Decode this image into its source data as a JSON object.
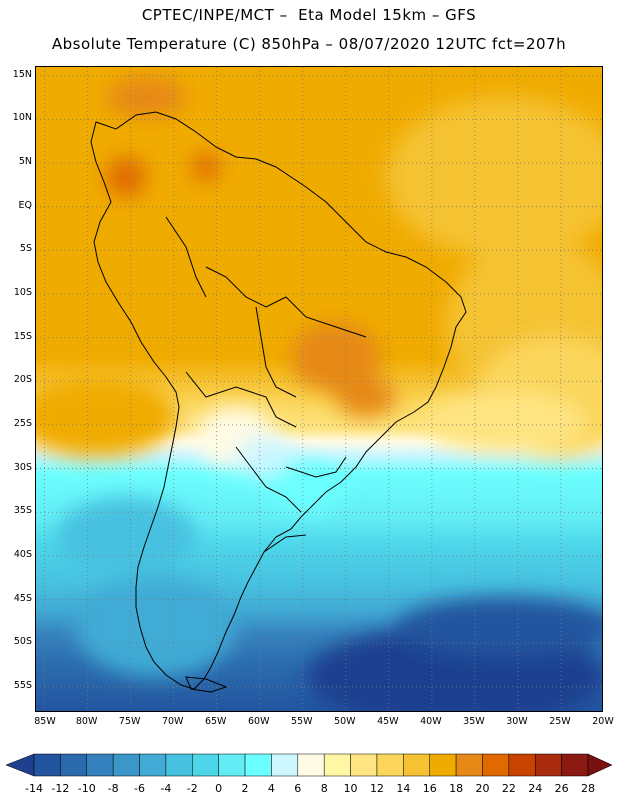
{
  "header": {
    "line1": "CPTEC/INPE/MCT –  Eta Model 15km – GFS",
    "line2": "Absolute Temperature (C) 850hPa – 08/07/2020 12UTC fct=207h"
  },
  "map": {
    "region": "South America",
    "variable": "Absolute Temperature (C) at 850hPa",
    "lat_range": [
      -58,
      16
    ],
    "lon_range": [
      -86,
      -20
    ],
    "lat_labels": [
      {
        "text": "15N",
        "lat": 15
      },
      {
        "text": "10N",
        "lat": 10
      },
      {
        "text": "5N",
        "lat": 5
      },
      {
        "text": "EQ",
        "lat": 0
      },
      {
        "text": "5S",
        "lat": -5
      },
      {
        "text": "10S",
        "lat": -10
      },
      {
        "text": "15S",
        "lat": -15
      },
      {
        "text": "20S",
        "lat": -20
      },
      {
        "text": "25S",
        "lat": -25
      },
      {
        "text": "30S",
        "lat": -30
      },
      {
        "text": "35S",
        "lat": -35
      },
      {
        "text": "40S",
        "lat": -40
      },
      {
        "text": "45S",
        "lat": -45
      },
      {
        "text": "50S",
        "lat": -50
      },
      {
        "text": "55S",
        "lat": -55
      }
    ],
    "lon_labels": [
      {
        "text": "85W",
        "lon": -85
      },
      {
        "text": "80W",
        "lon": -80
      },
      {
        "text": "75W",
        "lon": -75
      },
      {
        "text": "70W",
        "lon": -70
      },
      {
        "text": "65W",
        "lon": -65
      },
      {
        "text": "60W",
        "lon": -60
      },
      {
        "text": "55W",
        "lon": -55
      },
      {
        "text": "50W",
        "lon": -50
      },
      {
        "text": "45W",
        "lon": -45
      },
      {
        "text": "40W",
        "lon": -40
      },
      {
        "text": "35W",
        "lon": -35
      },
      {
        "text": "30W",
        "lon": -30
      },
      {
        "text": "25W",
        "lon": -25
      },
      {
        "text": "20W",
        "lon": -20
      }
    ]
  },
  "colorbar": {
    "ticks": [
      "-14",
      "-12",
      "-10",
      "-8",
      "-6",
      "-4",
      "-2",
      "0",
      "2",
      "4",
      "6",
      "8",
      "10",
      "12",
      "14",
      "16",
      "18",
      "20",
      "22",
      "24",
      "26",
      "28"
    ],
    "colors": [
      "#1f3f8f",
      "#23549f",
      "#2a6aad",
      "#3581bd",
      "#3c97c9",
      "#41abd5",
      "#47c1e0",
      "#4dd6ea",
      "#62ecf4",
      "#6cffff",
      "#cdf6ff",
      "#fffbe5",
      "#fff7a5",
      "#fee582",
      "#fbd65b",
      "#f5c233",
      "#f0ab00",
      "#e68916",
      "#e06a00",
      "#c84300",
      "#a82c0d",
      "#8a1a12",
      "#7a1111"
    ],
    "under_color": "#1f3f8f",
    "over_color": "#7a1111"
  }
}
